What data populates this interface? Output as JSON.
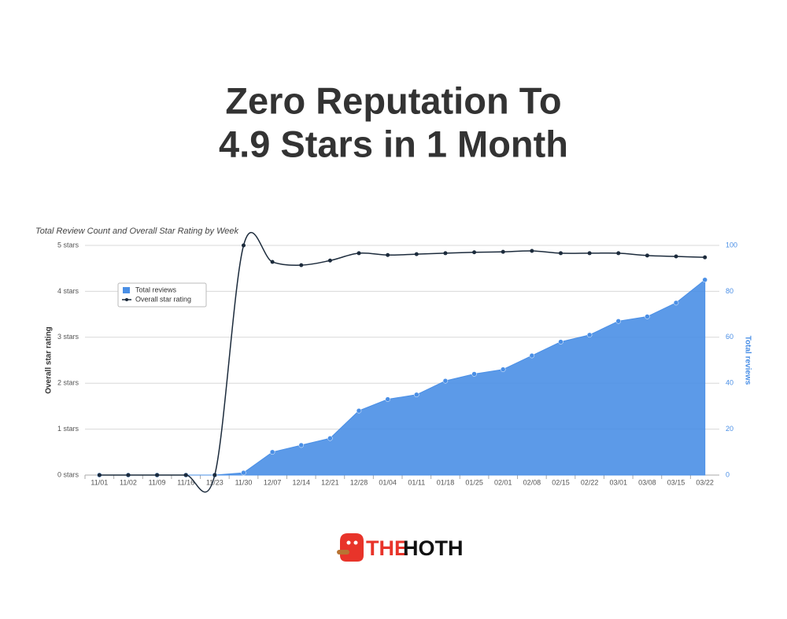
{
  "headline": [
    "Zero Reputation To",
    "4.9 Stars in 1 Month"
  ],
  "brand": [
    "THE",
    "HOTH"
  ],
  "chart_data": {
    "type": "area-line",
    "title": "Total Review Count and Overall Star Rating by Week",
    "y_label": "Overall star rating",
    "y2_label": "Total reviews",
    "categories": [
      "11/01",
      "11/02",
      "11/09",
      "11/16",
      "11/23",
      "11/30",
      "12/07",
      "12/14",
      "12/21",
      "12/28",
      "01/04",
      "01/11",
      "01/18",
      "01/25",
      "02/01",
      "02/08",
      "02/15",
      "02/22",
      "03/01",
      "03/08",
      "03/15",
      "03/22"
    ],
    "series": [
      {
        "name": "Total reviews",
        "color": "#4a8fe6",
        "axis": "y2",
        "kind": "area",
        "values": [
          0,
          0,
          0,
          0,
          0,
          1,
          10,
          13,
          16,
          28,
          33,
          35,
          41,
          44,
          46,
          52,
          58,
          61,
          67,
          69,
          75,
          85
        ]
      },
      {
        "name": "Overall star rating",
        "color": "#1c2b3c",
        "axis": "y",
        "kind": "line",
        "values": [
          0,
          0,
          0,
          0,
          0,
          5,
          4.64,
          4.57,
          4.67,
          4.83,
          4.79,
          4.81,
          4.83,
          4.85,
          4.86,
          4.88,
          4.83,
          4.83,
          4.83,
          4.78,
          4.76,
          4.74
        ]
      }
    ],
    "ylim": [
      0,
      5
    ],
    "yticks": [
      {
        "value": 0,
        "label": "0 stars"
      },
      {
        "value": 1,
        "label": "1 stars"
      },
      {
        "value": 2,
        "label": "2 stars"
      },
      {
        "value": 3,
        "label": "3 stars"
      },
      {
        "value": 4,
        "label": "4 stars"
      },
      {
        "value": 5,
        "label": "5 stars"
      }
    ],
    "y2lim": [
      0,
      100
    ],
    "y2ticks": [
      0,
      20,
      40,
      60,
      80,
      100
    ],
    "grid": true,
    "legend": "upper left"
  }
}
